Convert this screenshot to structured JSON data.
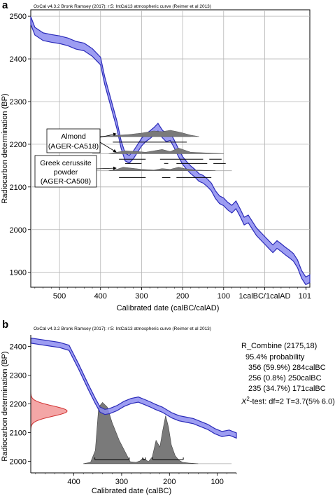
{
  "panels": {
    "a": {
      "letter": "a",
      "header": "OxCal v4.3.2 Bronk Ramsey (2017): r:5: IntCal13 atmospheric curve (Reimer et al 2013)",
      "xlabel": "Calibrated date (calBC/calAD)",
      "ylabel": "Radiocarbon determination (BP)",
      "x_ticks": [
        "500",
        "400",
        "300",
        "200",
        "100",
        "1calBC/1calAD",
        "101"
      ],
      "y_ticks": [
        "2500",
        "2400",
        "2300",
        "2200",
        "2100",
        "2000",
        "1900"
      ],
      "callouts": [
        {
          "lines": [
            "Almond",
            "(AGER-CA518)"
          ]
        },
        {
          "lines": [
            "Greek cerussite",
            "powder",
            "(AGER-CA508)"
          ]
        }
      ]
    },
    "b": {
      "letter": "b",
      "header": "OxCal v4.3.2 Bronk Ramsey (2017): r:5: IntCal13 atmospheric curve (Reimer et al 2013)",
      "xlabel": "Calibrated date (calBC)",
      "ylabel": "Radiocarbon determination (BP)",
      "x_ticks": [
        "400",
        "300",
        "200",
        "100"
      ],
      "y_ticks": [
        "2400",
        "2300",
        "2200",
        "2100",
        "2000"
      ],
      "summary": {
        "title": "R_Combine (2175,18)",
        "prob_header": "95.4% probability",
        "ranges": [
          "356 (59.9%) 284calBC",
          "256 (0.8%) 250calBC",
          "235 (34.7%) 171calBC"
        ],
        "test_prefix": "X",
        "test_sup": "2",
        "test_rest": "-test: df=2  T=3.7(5% 6.0)"
      }
    }
  },
  "colors": {
    "curve_fill": "#8c8cf0",
    "curve_stroke": "#2a2ab8",
    "dist_fill": "#7a7a7a",
    "measure_fill": "#f4a6a6",
    "measure_stroke": "#d03030"
  },
  "chart_data": [
    {
      "type": "line",
      "panel": "a",
      "title": "",
      "xlabel": "Calibrated date (calBC/calAD)",
      "ylabel": "Radiocarbon determination (BP)",
      "xlim": [
        -570,
        110
      ],
      "ylim": [
        1865,
        2515
      ],
      "x_unit_note_sign": "negative = calBC, positive = calAD",
      "grid": true,
      "series": [
        {
          "x": [
            -570,
            -560,
            -540,
            -520,
            -500,
            -480,
            -460,
            -440,
            -420,
            -400,
            -390,
            -380,
            -370,
            -360,
            -350,
            -340,
            -330,
            -320,
            -310,
            -300,
            -290,
            -280,
            -270,
            -260,
            -250,
            -240,
            -230,
            -220,
            -210,
            -200,
            -190,
            -180,
            -170,
            -160,
            -150,
            -140,
            -130,
            -120,
            -110,
            -100,
            -90,
            -80,
            -70,
            -60,
            -50,
            -40,
            -30,
            -20,
            -10,
            10,
            20,
            30,
            40,
            50,
            60,
            70,
            80,
            90,
            100,
            110
          ],
          "y": [
            2490,
            2465,
            2452,
            2448,
            2445,
            2440,
            2432,
            2428,
            2415,
            2395,
            2350,
            2315,
            2280,
            2245,
            2200,
            2170,
            2165,
            2175,
            2190,
            2205,
            2215,
            2222,
            2230,
            2240,
            2225,
            2215,
            2218,
            2200,
            2180,
            2162,
            2150,
            2140,
            2132,
            2122,
            2118,
            2110,
            2100,
            2082,
            2070,
            2065,
            2055,
            2048,
            2058,
            2040,
            2020,
            2025,
            2010,
            1995,
            1985,
            1965,
            1955,
            1965,
            1958,
            1950,
            1943,
            1935,
            1920,
            1895,
            1880,
            1885
          ]
        }
      ]
    },
    {
      "type": "area",
      "panel": "b",
      "title": "",
      "xlabel": "Calibrated date (calBC)",
      "ylabel": "Radiocarbon determination (BP)",
      "xlim": [
        -490,
        -60
      ],
      "ylim": [
        1960,
        2440
      ],
      "grid": false,
      "calibration_curve": {
        "x": [
          -490,
          -470,
          -450,
          -430,
          -410,
          -390,
          -370,
          -355,
          -345,
          -335,
          -325,
          -310,
          -295,
          -280,
          -265,
          -250,
          -240,
          -230,
          -215,
          -205,
          -195,
          -180,
          -165,
          -150,
          -135,
          -120,
          -105,
          -90,
          -75,
          -60
        ],
        "y": [
          2420,
          2415,
          2410,
          2405,
          2395,
          2330,
          2260,
          2210,
          2180,
          2172,
          2175,
          2185,
          2200,
          2210,
          2215,
          2205,
          2198,
          2190,
          2180,
          2170,
          2160,
          2150,
          2145,
          2140,
          2130,
          2120,
          2105,
          2095,
          2100,
          2090
        ]
      },
      "measurement": {
        "mean_bp": 2175,
        "sd": 18
      },
      "calibrated_distribution": {
        "x": [
          -380,
          -365,
          -355,
          -348,
          -340,
          -330,
          -320,
          -305,
          -290,
          -282,
          -270,
          -262,
          -256,
          -250,
          -244,
          -236,
          -228,
          -220,
          -214,
          -208,
          -202,
          -196,
          -188,
          -180,
          -172,
          -160,
          -140
        ],
        "p": [
          0,
          0.02,
          0.2,
          0.85,
          0.92,
          0.85,
          0.62,
          0.35,
          0.14,
          0.03,
          0.02,
          0.04,
          0.08,
          0.06,
          0.03,
          0.1,
          0.35,
          0.25,
          0.5,
          0.72,
          0.55,
          0.28,
          0.12,
          0.05,
          0.02,
          0.01,
          0
        ]
      },
      "range_bars": [
        [
          -356,
          -284
        ],
        [
          -256,
          -250
        ],
        [
          -235,
          -171
        ]
      ]
    }
  ]
}
